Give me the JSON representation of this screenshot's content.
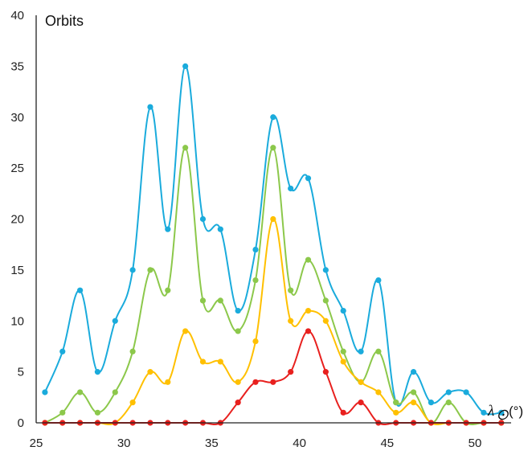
{
  "chart_data": {
    "type": "line",
    "ylabel": "Orbits",
    "xlabel": "λ",
    "xlabel_subscript": "⊙",
    "xlabel_unit": "(°)",
    "xlim": [
      25,
      52
    ],
    "ylim": [
      0,
      40
    ],
    "x_ticks": [
      25,
      30,
      35,
      40,
      45,
      50
    ],
    "y_ticks": [
      0,
      5,
      10,
      15,
      20,
      25,
      30,
      35,
      40
    ],
    "x": [
      25.5,
      26.5,
      27.5,
      28.5,
      29.5,
      30.5,
      31.5,
      32.5,
      33.5,
      34.5,
      35.5,
      36.5,
      37.5,
      38.5,
      39.5,
      40.5,
      41.5,
      42.5,
      43.5,
      44.5,
      45.5,
      46.5,
      47.5,
      48.5,
      49.5,
      50.5,
      51.5
    ],
    "grid": false,
    "legend": "none",
    "series": [
      {
        "color": "#1AABDC",
        "values": [
          3,
          7,
          13,
          5,
          10,
          15,
          31,
          19,
          35,
          20,
          19,
          11,
          17,
          30,
          23,
          24,
          15,
          11,
          7,
          14,
          2,
          5,
          2,
          3,
          3,
          1,
          1
        ]
      },
      {
        "color": "#8CC84B",
        "values": [
          0,
          1,
          3,
          1,
          3,
          7,
          15,
          13,
          27,
          12,
          12,
          9,
          14,
          27,
          13,
          16,
          12,
          7,
          4,
          7,
          2,
          3,
          0,
          2,
          0,
          0,
          0
        ]
      },
      {
        "color": "#FFC000",
        "values": [
          0,
          0,
          0,
          0,
          0,
          2,
          5,
          4,
          9,
          6,
          6,
          4,
          8,
          20,
          10,
          11,
          10,
          6,
          4,
          3,
          1,
          2,
          0,
          0,
          0,
          0,
          0
        ]
      },
      {
        "color": "#E8201E",
        "values": [
          0,
          0,
          0,
          0,
          0,
          0,
          0,
          0,
          0,
          0,
          0,
          2,
          4,
          4,
          5,
          9,
          5,
          1,
          2,
          0,
          0,
          0,
          0,
          0,
          0,
          0,
          0
        ]
      }
    ]
  }
}
